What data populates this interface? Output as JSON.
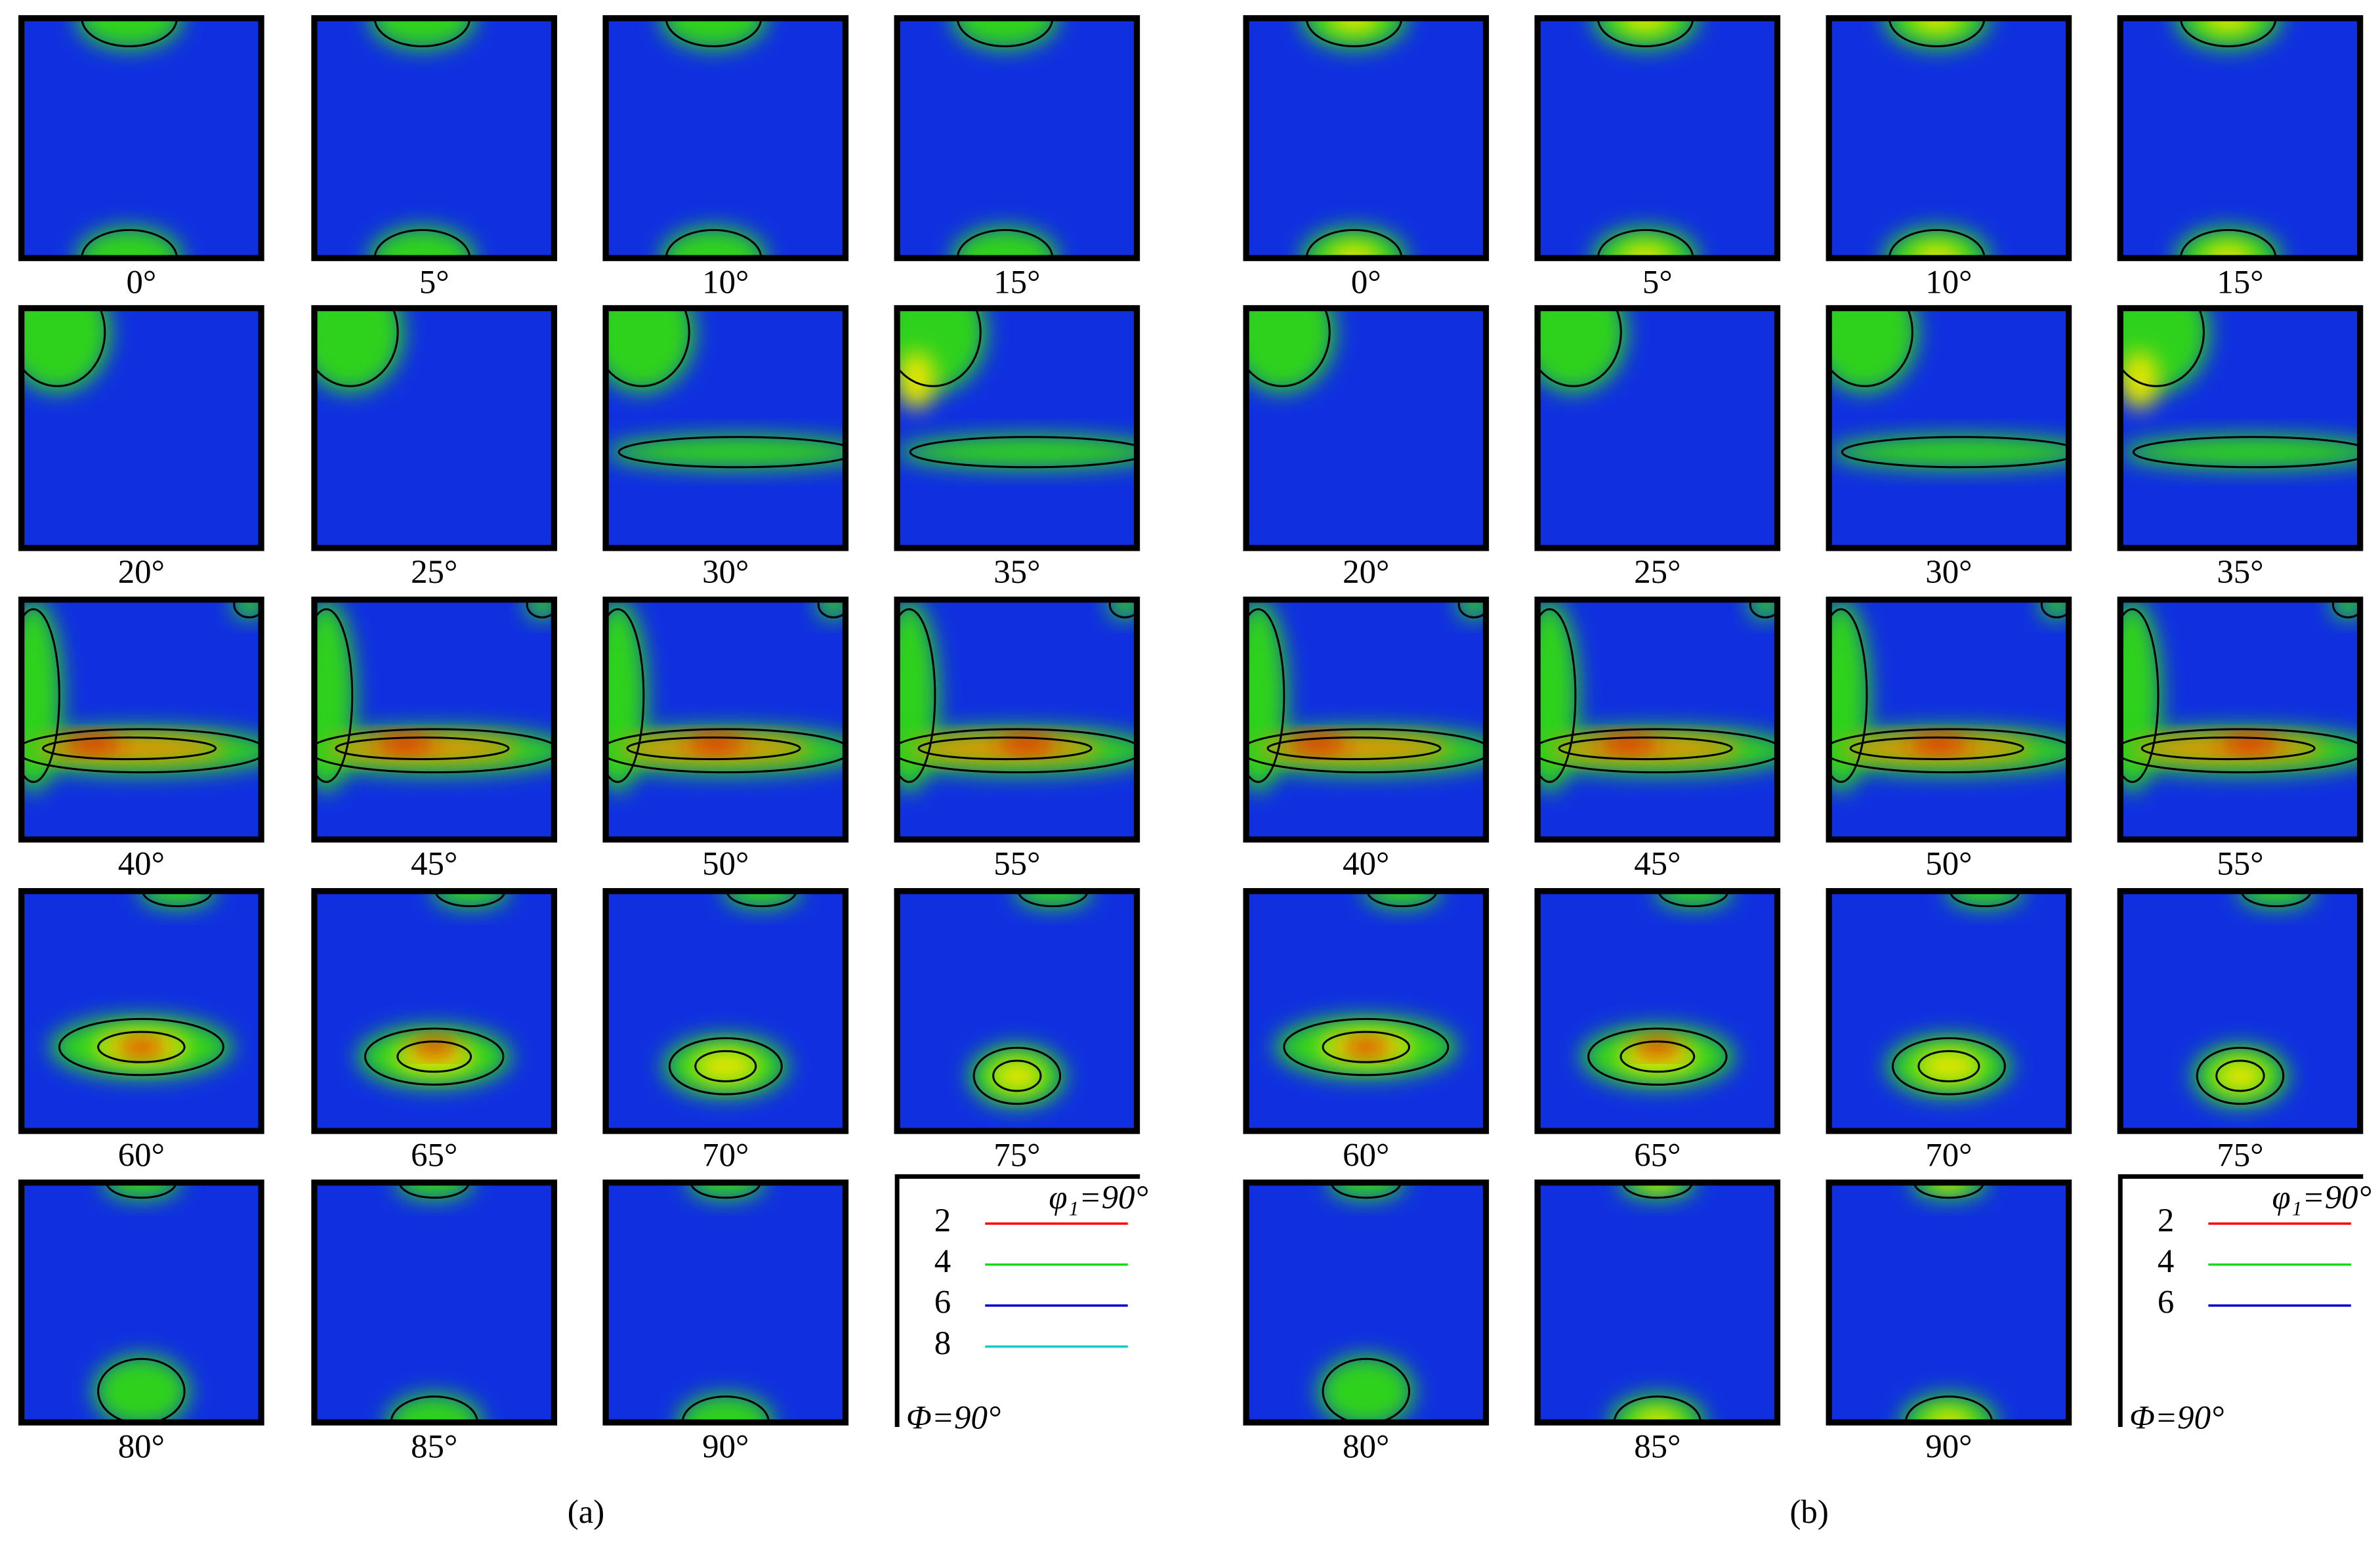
{
  "panels": [
    {
      "label": "(a)",
      "sections": [
        "0°",
        "5°",
        "10°",
        "15°",
        "20°",
        "25°",
        "30°",
        "35°",
        "40°",
        "45°",
        "50°",
        "55°",
        "60°",
        "65°",
        "70°",
        "75°",
        "80°",
        "85°",
        "90°"
      ],
      "legend": {
        "levels": [
          "2",
          "4",
          "6",
          "8"
        ],
        "colors": [
          "#ff0000",
          "#00dd00",
          "#0000cc",
          "#00cccc"
        ],
        "phi1": "φ₁=90°",
        "Phi": "Φ=90°"
      }
    },
    {
      "label": "(b)",
      "sections": [
        "0°",
        "5°",
        "10°",
        "15°",
        "20°",
        "25°",
        "30°",
        "35°",
        "40°",
        "45°",
        "50°",
        "55°",
        "60°",
        "65°",
        "70°",
        "75°",
        "80°",
        "85°",
        "90°"
      ],
      "legend": {
        "levels": [
          "2",
          "4",
          "6"
        ],
        "colors": [
          "#ff0000",
          "#00dd00",
          "#0000cc"
        ],
        "phi1": "φ₁=90°",
        "Phi": "Φ=90°"
      }
    }
  ]
}
